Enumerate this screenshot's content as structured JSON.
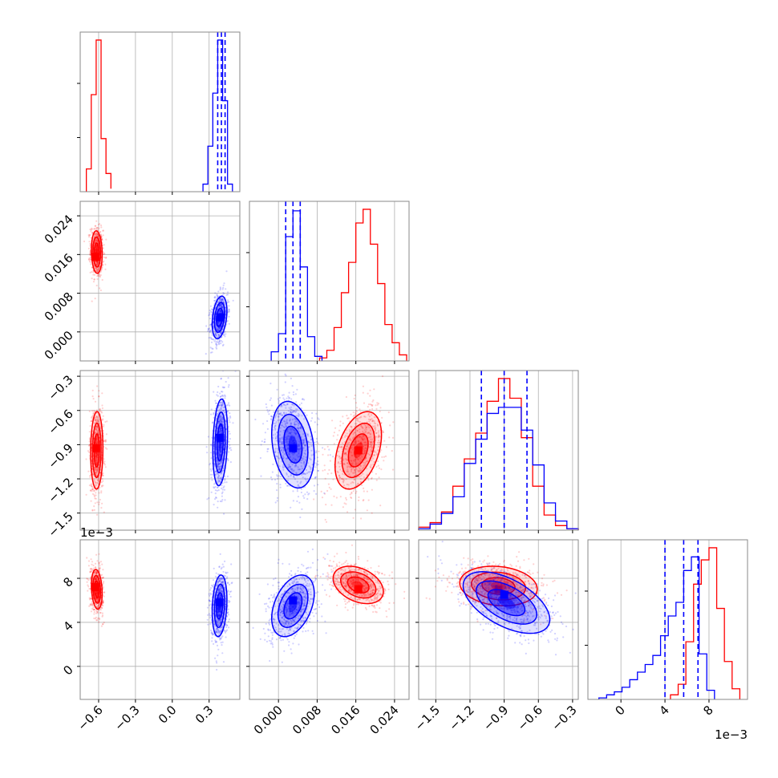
{
  "chart_data": {
    "type": "corner",
    "colors": {
      "red": "#ff0000",
      "blue": "#0000ff",
      "grid": "#b0b0b0",
      "frame": "#8a8a8a"
    },
    "series": [
      "red",
      "blue"
    ],
    "params": [
      {
        "range": [
          -0.75,
          0.55
        ],
        "ticks": [
          -0.6,
          -0.3,
          0.0,
          0.3
        ],
        "tick_labels": [
          "−0.6",
          "−0.3",
          "0.0",
          "0.3"
        ],
        "offset": ""
      },
      {
        "range": [
          -0.006,
          0.027
        ],
        "ticks": [
          0.0,
          0.008,
          0.016,
          0.024
        ],
        "tick_labels": [
          "0.000",
          "0.008",
          "0.016",
          "0.024"
        ],
        "offset": ""
      },
      {
        "range": [
          -1.65,
          -0.25
        ],
        "ticks": [
          -1.5,
          -1.2,
          -0.9,
          -0.6,
          -0.3
        ],
        "tick_labels": [
          "−1.5",
          "−1.2",
          "−0.9",
          "−0.6",
          "−0.3"
        ],
        "offset": ""
      },
      {
        "range": [
          -3.0,
          11.5
        ],
        "ticks": [
          0,
          4,
          8
        ],
        "tick_labels": [
          "0",
          "4",
          "8"
        ],
        "offset": "1e−3"
      }
    ],
    "histograms": [
      {
        "red": {
          "edges": [
            -0.7,
            -0.66,
            -0.62,
            -0.58,
            -0.54,
            -0.5
          ],
          "counts": [
            0.15,
            0.64,
            1.0,
            0.35,
            0.12,
            0.02
          ]
        },
        "blue": {
          "edges": [
            0.25,
            0.29,
            0.33,
            0.37,
            0.41,
            0.45,
            0.49
          ],
          "counts": [
            0.05,
            0.3,
            0.65,
            1.0,
            0.6,
            0.05
          ]
        },
        "quantiles_blue": [
          0.37,
          0.4,
          0.43
        ]
      },
      {
        "red": {
          "edges": [
            0.0085,
            0.01,
            0.0115,
            0.013,
            0.0145,
            0.016,
            0.0175,
            0.019,
            0.0205,
            0.022,
            0.0235,
            0.025,
            0.0265
          ],
          "counts": [
            0.02,
            0.07,
            0.22,
            0.45,
            0.65,
            0.91,
            1.0,
            0.77,
            0.51,
            0.24,
            0.12,
            0.04
          ]
        },
        "blue": {
          "edges": [
            -0.0015,
            0.0,
            0.0015,
            0.003,
            0.0045,
            0.006,
            0.0075,
            0.009
          ],
          "counts": [
            0.06,
            0.18,
            0.82,
            0.99,
            0.62,
            0.16,
            0.03
          ]
        },
        "quantiles_blue": [
          0.0015,
          0.003,
          0.0045
        ]
      },
      {
        "red": {
          "edges": [
            -1.65,
            -1.55,
            -1.45,
            -1.35,
            -1.25,
            -1.15,
            -1.05,
            -0.95,
            -0.85,
            -0.75,
            -0.65,
            -0.55,
            -0.45,
            -0.35,
            -0.25
          ],
          "counts": [
            0.02,
            0.05,
            0.12,
            0.29,
            0.47,
            0.64,
            0.85,
            1.0,
            0.87,
            0.61,
            0.29,
            0.1,
            0.03,
            0.01
          ]
        },
        "blue": {
          "edges": [
            -1.65,
            -1.55,
            -1.45,
            -1.35,
            -1.25,
            -1.15,
            -1.05,
            -0.95,
            -0.85,
            -0.75,
            -0.65,
            -0.55,
            -0.45,
            -0.35,
            -0.25
          ],
          "counts": [
            0.01,
            0.04,
            0.11,
            0.22,
            0.44,
            0.6,
            0.77,
            0.81,
            0.81,
            0.66,
            0.43,
            0.18,
            0.06,
            0.01
          ]
        },
        "quantiles_blue": [
          -1.1,
          -0.9,
          -0.7
        ]
      },
      {
        "red": {
          "edges": [
            4.5,
            5.2,
            5.9,
            6.6,
            7.3,
            8.0,
            8.7,
            9.4,
            10.1,
            10.8
          ],
          "counts": [
            0.03,
            0.1,
            0.38,
            0.76,
            0.92,
            1.0,
            0.6,
            0.25,
            0.07
          ]
        },
        "blue": {
          "edges": [
            -2.0,
            -1.3,
            -0.6,
            0.1,
            0.8,
            1.5,
            2.2,
            2.9,
            3.6,
            4.3,
            5.0,
            5.7,
            6.4,
            7.1,
            7.8,
            8.5
          ],
          "counts": [
            0.01,
            0.03,
            0.05,
            0.08,
            0.13,
            0.18,
            0.23,
            0.29,
            0.42,
            0.55,
            0.64,
            0.85,
            0.94,
            0.3,
            0.06
          ]
        },
        "quantiles_blue": [
          4.0,
          5.7,
          7.0
        ]
      }
    ],
    "blobs": {
      "1-0": {
        "red": {
          "cx": -0.615,
          "cy": 0.0165,
          "sx": 0.022,
          "sy": 0.0022,
          "rho": -0.1,
          "peak": [
            -0.625,
            0.0155
          ]
        },
        "blue": {
          "cx": 0.385,
          "cy": 0.003,
          "sx": 0.03,
          "sy": 0.0022,
          "rho": 0.3,
          "peak": [
            0.39,
            0.003
          ]
        }
      },
      "2-0": {
        "red": {
          "cx": -0.615,
          "cy": -0.95,
          "sx": 0.025,
          "sy": 0.17,
          "rho": 0.05,
          "peak": [
            -0.62,
            -0.93
          ]
        },
        "blue": {
          "cx": 0.39,
          "cy": -0.88,
          "sx": 0.03,
          "sy": 0.19,
          "rho": 0.2,
          "peak": [
            0.39,
            -0.84
          ]
        }
      },
      "2-1": {
        "red": {
          "cx": 0.0165,
          "cy": -0.95,
          "sx": 0.0024,
          "sy": 0.17,
          "rho": 0.4,
          "peak": [
            0.0165,
            -0.95
          ]
        },
        "blue": {
          "cx": 0.003,
          "cy": -0.9,
          "sx": 0.0022,
          "sy": 0.19,
          "rho": -0.25,
          "peak": [
            0.003,
            -0.93
          ]
        }
      },
      "3-0": {
        "red": {
          "cx": -0.615,
          "cy": 7.0,
          "sx": 0.022,
          "sy": 0.9,
          "rho": -0.2,
          "peak": [
            -0.625,
            7.2
          ]
        },
        "blue": {
          "cx": 0.385,
          "cy": 5.5,
          "sx": 0.03,
          "sy": 1.4,
          "rho": 0.2,
          "peak": [
            0.385,
            5.8
          ]
        }
      },
      "3-1": {
        "red": {
          "cx": 0.0165,
          "cy": 7.4,
          "sx": 0.0026,
          "sy": 0.85,
          "rho": -0.35,
          "peak": [
            0.0165,
            7.0
          ]
        },
        "blue": {
          "cx": 0.003,
          "cy": 5.5,
          "sx": 0.0022,
          "sy": 1.4,
          "rho": 0.4,
          "peak": [
            0.003,
            6.0
          ]
        }
      },
      "3-2": {
        "red": {
          "cx": -0.95,
          "cy": 7.3,
          "sx": 0.17,
          "sy": 0.9,
          "rho": -0.15,
          "peak": [
            -0.95,
            7.0
          ]
        },
        "blue": {
          "cx": -0.88,
          "cy": 5.8,
          "sx": 0.19,
          "sy": 1.4,
          "rho": -0.55,
          "peak": [
            -0.9,
            6.5
          ]
        }
      }
    }
  }
}
